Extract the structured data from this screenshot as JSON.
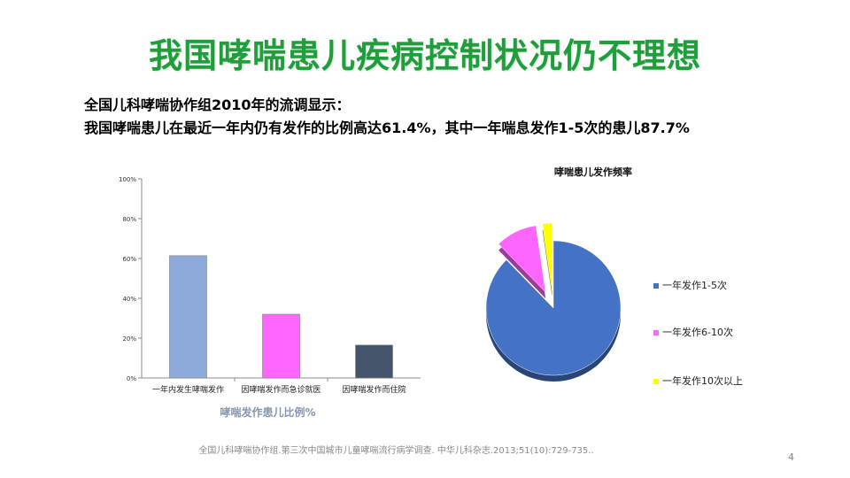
{
  "slide": {
    "title": "我国哮喘患儿疾病控制状况仍不理想",
    "intro_line1": "全国儿科哮喘协作组2010年的流调显示：",
    "intro_line2": "我国哮喘患儿在最近一年内仍有发作的比例高达61.4%，其中一年喘息发作1-5次的患儿87.7%",
    "footnote": "全国儿科哮喘协作组.第三次中国城市儿童哮喘流行病学调查. 中华儿科杂志.2013;51(10):729-735..",
    "page_number": "4"
  },
  "chart_data": [
    {
      "type": "bar",
      "title": "",
      "xlabel": "哮喘发作患儿比例%",
      "ylabel": "",
      "categories": [
        "一年内发生哮喘发作",
        "因哮喘发作而急诊就医",
        "因哮喘发作而住院"
      ],
      "values": [
        61.4,
        32,
        16.5
      ],
      "colors": [
        "#8eaadb",
        "#ff66ff",
        "#44546a"
      ],
      "ylim": [
        0,
        100
      ],
      "yticks": [
        "0%",
        "20%",
        "40%",
        "60%",
        "80%",
        "100%"
      ],
      "grid": false
    },
    {
      "type": "pie",
      "title": "哮喘患儿发作频率",
      "categories": [
        "一年发作1-5次",
        "一年发作6-10次",
        "一年发作10次以上"
      ],
      "values": [
        87.7,
        10.0,
        2.3
      ],
      "colors": [
        "#4472c4",
        "#ff66ff",
        "#ffff00"
      ],
      "exploded": true,
      "legend": "right"
    }
  ]
}
